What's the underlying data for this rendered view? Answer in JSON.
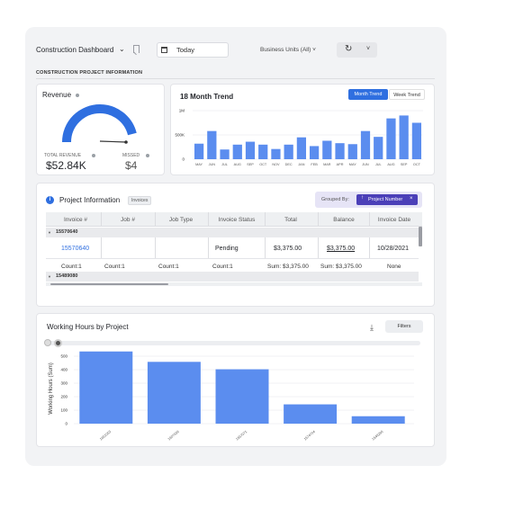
{
  "header": {
    "title": "Construction Dashboard",
    "date_value": "Today",
    "business_units": "Business Units (All)"
  },
  "section_title": "CONSTRUCTION PROJECT INFORMATION",
  "revenue": {
    "title": "Revenue",
    "gauge_fraction": 0.92,
    "total_label": "TOTAL REVENUE",
    "total_value": "$52.84K",
    "missed_label": "MISSED",
    "missed_value": "$4"
  },
  "trend": {
    "title": "18 Month Trend",
    "tab_month": "Month Trend",
    "tab_week": "Week Trend",
    "chart_data": {
      "type": "bar",
      "y_ticks": [
        "1M",
        "500K",
        "0"
      ],
      "ylim": [
        0,
        1000000
      ],
      "categories": [
        "MAY",
        "JUN",
        "JUL",
        "AUG",
        "SEP",
        "OCT",
        "NOV",
        "DEC",
        "JAN",
        "FEB",
        "MAR",
        "APR",
        "MAY",
        "JUN",
        "JUL",
        "AUG",
        "SEP",
        "OCT"
      ],
      "values": [
        320000,
        580000,
        200000,
        300000,
        360000,
        300000,
        210000,
        300000,
        450000,
        270000,
        380000,
        330000,
        310000,
        580000,
        460000,
        840000,
        900000,
        750000
      ],
      "color": "#5b8def"
    }
  },
  "project_info": {
    "title": "Project Information",
    "badge": "Invoices",
    "grouped_by_label": "Grouped By:",
    "chip": "Project Number",
    "columns": [
      "Invoice #",
      "Job #",
      "Job Type",
      "Invoice Status",
      "Total",
      "Balance",
      "Invoice Date"
    ],
    "group1": "15570640",
    "row": [
      "15570640",
      "",
      "",
      "Pending",
      "$3,375.00",
      "$3,375.00",
      "10/28/2021"
    ],
    "counts": [
      "Count:1",
      "Count:1",
      "Count:1",
      "Count:1",
      "Sum: $3,375.00",
      "Sum: $3,375.00",
      "None"
    ],
    "group2": "15489080"
  },
  "working_hours": {
    "title": "Working Hours by Project",
    "filters": "Filters",
    "chart_data": {
      "type": "bar",
      "ylabel": "Working Hours (Sum)",
      "y_ticks": [
        500,
        400,
        300,
        200,
        100,
        0
      ],
      "ylim": [
        0,
        560
      ],
      "categories": [
        "1651053",
        "1607436",
        "1557071",
        "1574704",
        "1546266"
      ],
      "values": [
        535,
        458,
        403,
        143,
        55
      ],
      "color": "#5b8def"
    }
  }
}
